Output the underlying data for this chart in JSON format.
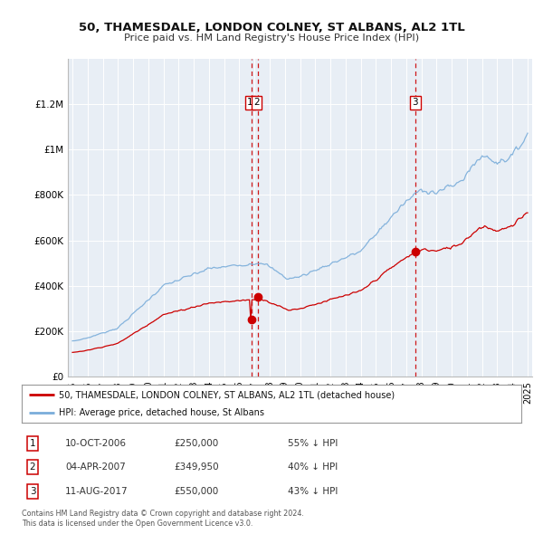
{
  "title": "50, THAMESDALE, LONDON COLNEY, ST ALBANS, AL2 1TL",
  "subtitle": "Price paid vs. HM Land Registry's House Price Index (HPI)",
  "legend_property": "50, THAMESDALE, LONDON COLNEY, ST ALBANS, AL2 1TL (detached house)",
  "legend_hpi": "HPI: Average price, detached house, St Albans",
  "footnote1": "Contains HM Land Registry data © Crown copyright and database right 2024.",
  "footnote2": "This data is licensed under the Open Government Licence v3.0.",
  "sales": [
    {
      "label": "1",
      "date_num": 2006.78,
      "price": 250000,
      "note": "10-OCT-2006",
      "pct": "55% ↓ HPI"
    },
    {
      "label": "2",
      "date_num": 2007.25,
      "price": 349950,
      "note": "04-APR-2007",
      "pct": "40% ↓ HPI"
    },
    {
      "label": "3",
      "date_num": 2017.6,
      "price": 550000,
      "note": "11-AUG-2017",
      "pct": "43% ↓ HPI"
    }
  ],
  "table_rows": [
    {
      "num": "1",
      "date": "10-OCT-2006",
      "price": "£250,000",
      "pct": "55% ↓ HPI"
    },
    {
      "num": "2",
      "date": "04-APR-2007",
      "price": "£349,950",
      "pct": "40% ↓ HPI"
    },
    {
      "num": "3",
      "date": "11-AUG-2017",
      "price": "£550,000",
      "pct": "43% ↓ HPI"
    }
  ],
  "property_color": "#cc0000",
  "hpi_color": "#7aadda",
  "dashed_line_color": "#cc0000",
  "ylim": [
    0,
    1400000
  ],
  "yticks": [
    0,
    200000,
    400000,
    600000,
    800000,
    1000000,
    1200000
  ],
  "xlim_start": 1994.7,
  "xlim_end": 2025.3,
  "background_color": "#e8eef5"
}
